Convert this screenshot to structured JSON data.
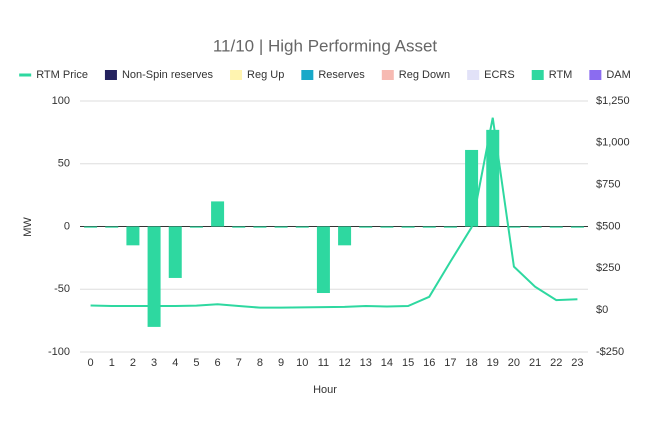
{
  "chart_data": {
    "type": "bar",
    "title": "11/10 | High Performing Asset",
    "x_label": "Hour",
    "y_label": "MW",
    "categories": [
      "0",
      "1",
      "2",
      "3",
      "4",
      "5",
      "6",
      "7",
      "8",
      "9",
      "10",
      "11",
      "12",
      "13",
      "14",
      "15",
      "16",
      "17",
      "18",
      "19",
      "20",
      "21",
      "22",
      "23"
    ],
    "ylim": [
      -100,
      100
    ],
    "yticks": [
      -100,
      -50,
      0,
      50,
      100
    ],
    "y2lim": [
      -250,
      1250
    ],
    "y2ticks": [
      {
        "value": -250,
        "label": "-$250"
      },
      {
        "value": 0,
        "label": "$0"
      },
      {
        "value": 250,
        "label": "$250"
      },
      {
        "value": 500,
        "label": "$500"
      },
      {
        "value": 750,
        "label": "$750"
      },
      {
        "value": 1000,
        "label": "$1,000"
      },
      {
        "value": 1250,
        "label": "$1,250"
      }
    ],
    "grid": true,
    "legend": "top",
    "series": [
      {
        "name": "RTM Price",
        "type": "line",
        "axis": "y2",
        "color": "#2ed8a0",
        "values": [
          28,
          25,
          25,
          25,
          25,
          27,
          35,
          25,
          15,
          15,
          17,
          18,
          20,
          25,
          22,
          25,
          80,
          290,
          495,
          1150,
          260,
          140,
          60,
          65
        ]
      },
      {
        "name": "Non-Spin reserves",
        "type": "bar",
        "color": "#24225e",
        "values": [
          null,
          null,
          null,
          null,
          null,
          null,
          null,
          null,
          null,
          null,
          null,
          null,
          null,
          null,
          null,
          null,
          null,
          null,
          null,
          null,
          null,
          null,
          null,
          null
        ]
      },
      {
        "name": "Reg Up",
        "type": "bar",
        "color": "#fff4b0",
        "values": [
          null,
          null,
          null,
          null,
          null,
          null,
          null,
          null,
          null,
          null,
          null,
          null,
          null,
          null,
          null,
          null,
          null,
          null,
          null,
          null,
          null,
          null,
          null,
          null
        ]
      },
      {
        "name": "Reserves",
        "type": "bar",
        "color": "#18a9c9",
        "values": [
          null,
          null,
          null,
          null,
          null,
          null,
          null,
          null,
          null,
          null,
          null,
          null,
          null,
          null,
          null,
          null,
          null,
          null,
          null,
          null,
          null,
          null,
          null,
          null
        ]
      },
      {
        "name": "Reg Down",
        "type": "bar",
        "color": "#f7bab2",
        "values": [
          null,
          null,
          null,
          null,
          null,
          null,
          null,
          null,
          null,
          null,
          null,
          null,
          null,
          null,
          null,
          null,
          null,
          null,
          null,
          null,
          null,
          null,
          null,
          null
        ]
      },
      {
        "name": "ECRS",
        "type": "bar",
        "color": "#e2e2f8",
        "values": [
          null,
          null,
          null,
          null,
          null,
          null,
          null,
          null,
          null,
          null,
          null,
          null,
          null,
          null,
          null,
          null,
          null,
          null,
          null,
          null,
          null,
          null,
          null,
          null
        ]
      },
      {
        "name": "RTM",
        "type": "bar",
        "color": "#2ed8a0",
        "values": [
          0,
          0,
          -15,
          -80,
          -41,
          0,
          20,
          0,
          0,
          0,
          0,
          -53,
          -15,
          0,
          0,
          0,
          0,
          0,
          61,
          77,
          0,
          0,
          0,
          0
        ]
      },
      {
        "name": "DAM",
        "type": "bar",
        "color": "#8b6cf0",
        "values": [
          null,
          null,
          null,
          null,
          null,
          null,
          null,
          null,
          null,
          null,
          null,
          null,
          null,
          null,
          null,
          null,
          null,
          null,
          null,
          null,
          null,
          null,
          null,
          null
        ]
      }
    ]
  }
}
